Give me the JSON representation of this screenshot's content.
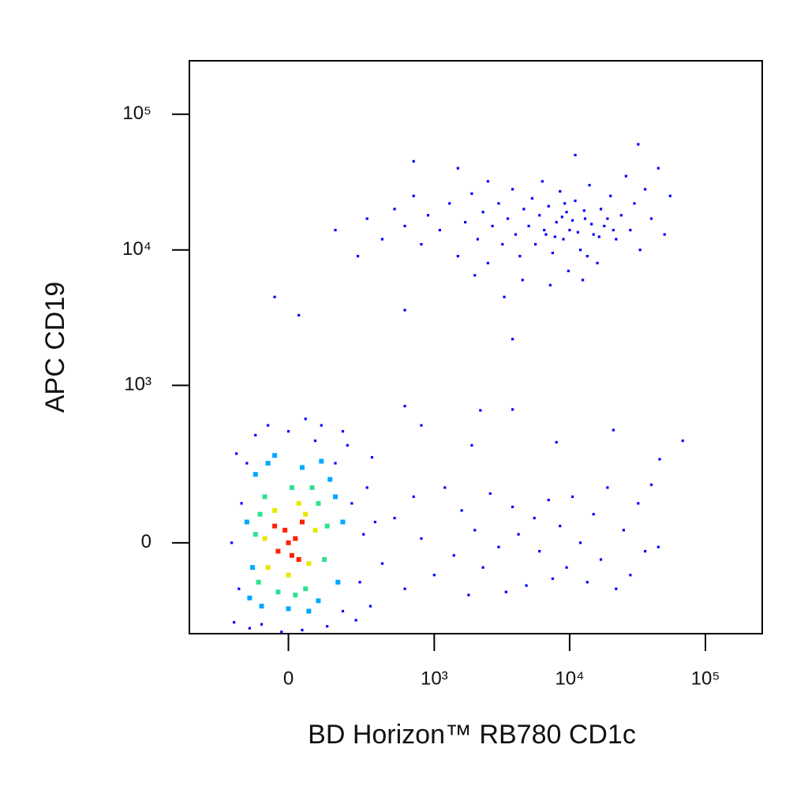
{
  "chart_data": {
    "type": "scatter",
    "x_label": "BD Horizon™  RB780 CD1c",
    "y_label": "APC CD19",
    "xscale": {
      "type": "biexponential",
      "width": 170
    },
    "yscale": {
      "type": "biexponential",
      "width": 139
    },
    "xlim": [
      -440,
      262000
    ],
    "ylim": [
      -310,
      247700
    ],
    "xticks": [
      0,
      {
        "value": 1000,
        "label": "10³"
      },
      {
        "value": 10000,
        "label": "10⁴"
      },
      {
        "value": 100000,
        "label": "10⁵"
      }
    ],
    "yticks": [
      0,
      {
        "value": 1000,
        "label": "10³"
      },
      {
        "value": 10000,
        "label": "10⁴"
      },
      {
        "value": 100000,
        "label": "10⁵"
      }
    ],
    "series": [
      {
        "color": "#0000ff",
        "x": [
          150,
          250,
          300,
          400,
          500,
          600,
          700,
          800,
          900,
          1100,
          1300,
          1500,
          1700,
          1900,
          2100,
          2300,
          2500,
          2700,
          3000,
          3200,
          3500,
          3800,
          4000,
          4300,
          4600,
          5000,
          5300,
          5600,
          6000,
          6300,
          6700,
          7000,
          7500,
          8000,
          8500,
          9000,
          9500,
          10000,
          11000,
          12000,
          13000,
          14000,
          15000,
          16000,
          17000,
          18000,
          20000,
          22000,
          24000,
          26000,
          28000,
          30000,
          33000,
          36000,
          40000,
          45000,
          50000,
          55000,
          4500,
          7200,
          9800,
          2000,
          12500,
          3300,
          600,
          -40,
          30,
          3800,
          11000,
          32000,
          700,
          1500,
          2500,
          6500,
          7800,
          8800,
          10500,
          11500,
          12800,
          14500,
          16500,
          19000,
          9200,
          13500,
          21000,
          400,
          500,
          600,
          700,
          800,
          1000,
          1200,
          1400,
          1600,
          1800,
          2000,
          2300,
          2600,
          3000,
          3400,
          3800,
          4200,
          4800,
          5500,
          6000,
          7000,
          7500,
          8500,
          9500,
          10500,
          12000,
          13500,
          15000,
          17000,
          19000,
          22000,
          25000,
          28000,
          32000,
          36000,
          40000,
          45000,
          2200,
          3800,
          800,
          1900,
          8000,
          21000,
          68000,
          46000,
          600,
          -180,
          -150,
          -170,
          -120,
          -100,
          -60,
          -20,
          0,
          40,
          80,
          120,
          150,
          180,
          220,
          260,
          280,
          300,
          320,
          350,
          -190,
          -160,
          200,
          100,
          -130,
          50,
          240,
          330,
          180,
          -80
        ],
        "y": [
          14000,
          9000,
          17000,
          12000,
          20000,
          15000,
          25000,
          11000,
          18000,
          14000,
          22000,
          9000,
          16000,
          26000,
          12000,
          19000,
          8000,
          15000,
          22000,
          11000,
          17000,
          28000,
          13000,
          9000,
          20000,
          15000,
          24000,
          11000,
          18000,
          32000,
          13000,
          21000,
          9500,
          16000,
          27000,
          12000,
          19000,
          14000,
          23000,
          10000,
          17000,
          30000,
          13000,
          8000,
          20000,
          15000,
          25000,
          12000,
          18000,
          35000,
          14000,
          22000,
          10000,
          28000,
          17000,
          40000,
          13000,
          25000,
          6000,
          5500,
          7000,
          6500,
          6000,
          4500,
          3600,
          4500,
          3300,
          2200,
          50000,
          60000,
          45000,
          40000,
          32000,
          14000,
          12500,
          17500,
          16500,
          13500,
          19500,
          15500,
          12500,
          17000,
          22000,
          9000,
          14000,
          -50,
          60,
          -120,
          120,
          10,
          -80,
          150,
          -30,
          80,
          -140,
          30,
          -60,
          130,
          -10,
          -130,
          90,
          20,
          -110,
          60,
          -20,
          110,
          -90,
          40,
          -60,
          120,
          0,
          -100,
          70,
          -40,
          150,
          -120,
          30,
          -80,
          100,
          -20,
          160,
          -10,
          650,
          660,
          500,
          350,
          370,
          460,
          380,
          270,
          700,
          -250,
          100,
          300,
          -280,
          420,
          500,
          -300,
          450,
          -290,
          380,
          -270,
          250,
          -200,
          100,
          -100,
          20,
          150,
          -180,
          50,
          0,
          -120,
          350,
          500,
          250,
          560,
          -240,
          280,
          450,
          -260
        ]
      },
      {
        "color": "#00a8ff",
        "x": [
          -120,
          -100,
          -80,
          -60,
          0,
          40,
          90,
          130,
          160,
          180,
          -130,
          -110,
          150,
          100,
          -40,
          60
        ],
        "y": [
          -150,
          200,
          -180,
          250,
          -190,
          230,
          -160,
          180,
          -100,
          50,
          50,
          -60,
          120,
          260,
          290,
          -200
        ]
      },
      {
        "color": "#30e090",
        "x": [
          -90,
          -70,
          -30,
          10,
          50,
          90,
          110,
          120,
          -100,
          -85,
          70,
          20
        ],
        "y": [
          -100,
          120,
          -130,
          150,
          -120,
          100,
          -40,
          40,
          20,
          70,
          150,
          -140
        ]
      },
      {
        "color": "#e8e800",
        "x": [
          -60,
          -40,
          0,
          30,
          60,
          80,
          -70,
          50
        ],
        "y": [
          -60,
          80,
          -80,
          100,
          -50,
          30,
          10,
          70
        ]
      },
      {
        "color": "#ff2000",
        "x": [
          -30,
          -10,
          10,
          20,
          40,
          -40,
          0,
          30
        ],
        "y": [
          -20,
          30,
          -30,
          10,
          50,
          40,
          0,
          -40
        ]
      }
    ]
  }
}
